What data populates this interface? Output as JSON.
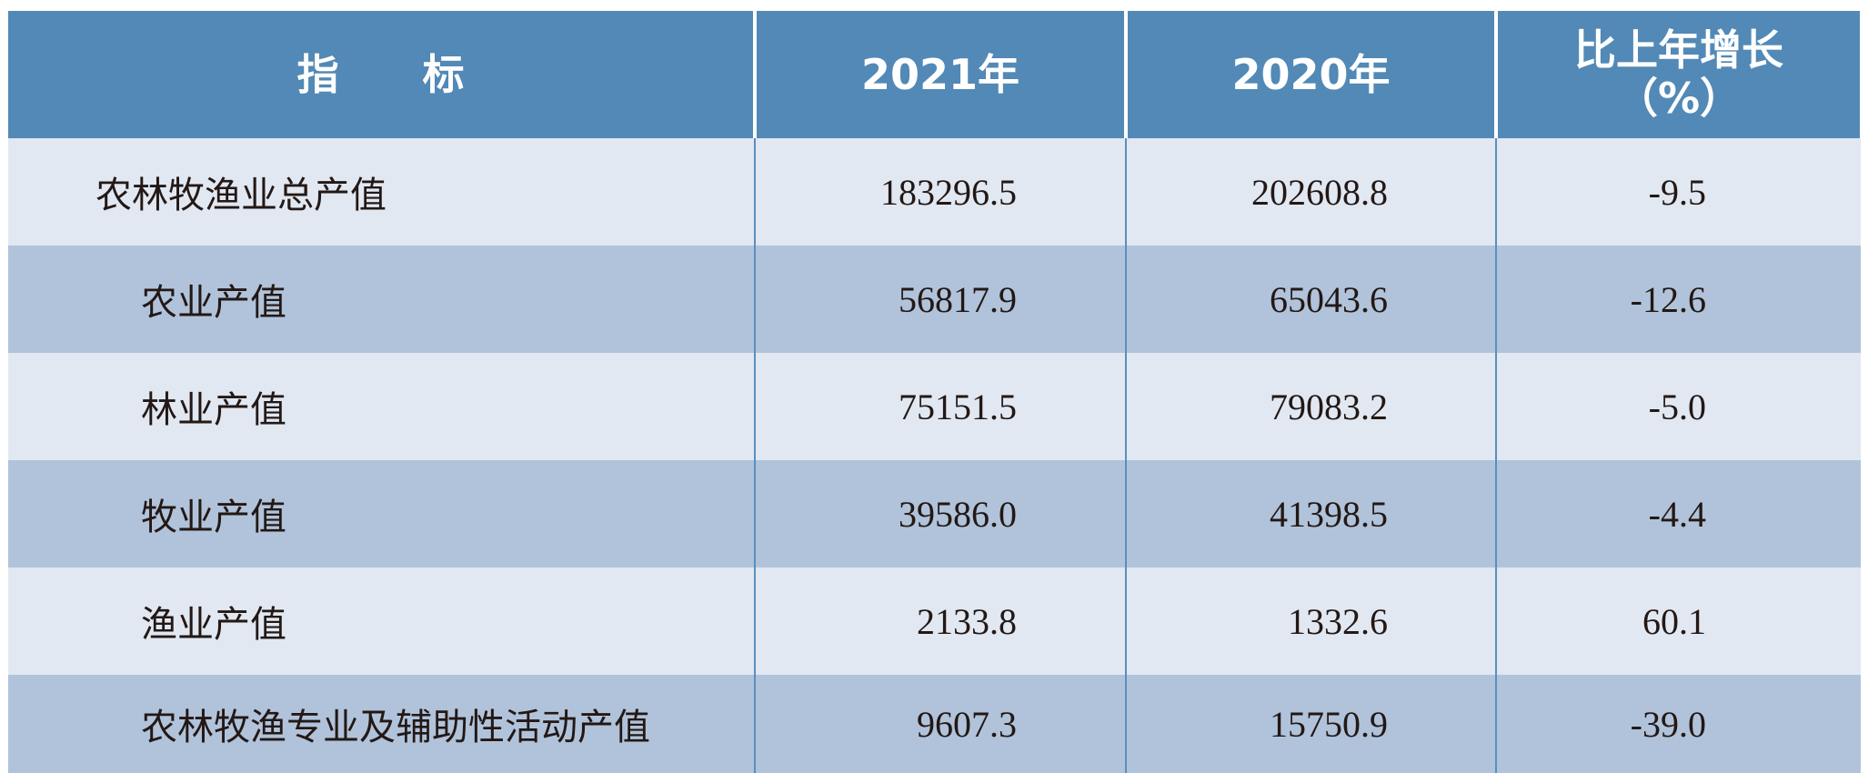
{
  "table": {
    "header": [
      [
        "指　　标"
      ],
      [
        "2021年"
      ],
      [
        "2020年"
      ],
      [
        "比上年增长",
        "（%）"
      ]
    ],
    "rows": [
      [
        "农林牧渔业总产值",
        "183296.5",
        "202608.8",
        "-9.5"
      ],
      [
        "农业产值",
        "56817.9",
        "65043.6",
        "-12.6"
      ],
      [
        "林业产值",
        "75151.5",
        "79083.2",
        "-5.0"
      ],
      [
        "牧业产值",
        "39586.0",
        "41398.5",
        "-4.4"
      ],
      [
        "渔业产值",
        "2133.8",
        "1332.6",
        "60.1"
      ],
      [
        "农林牧渔专业及辅助性活动产值",
        "9607.3",
        "15750.9",
        "-39.0"
      ]
    ]
  }
}
